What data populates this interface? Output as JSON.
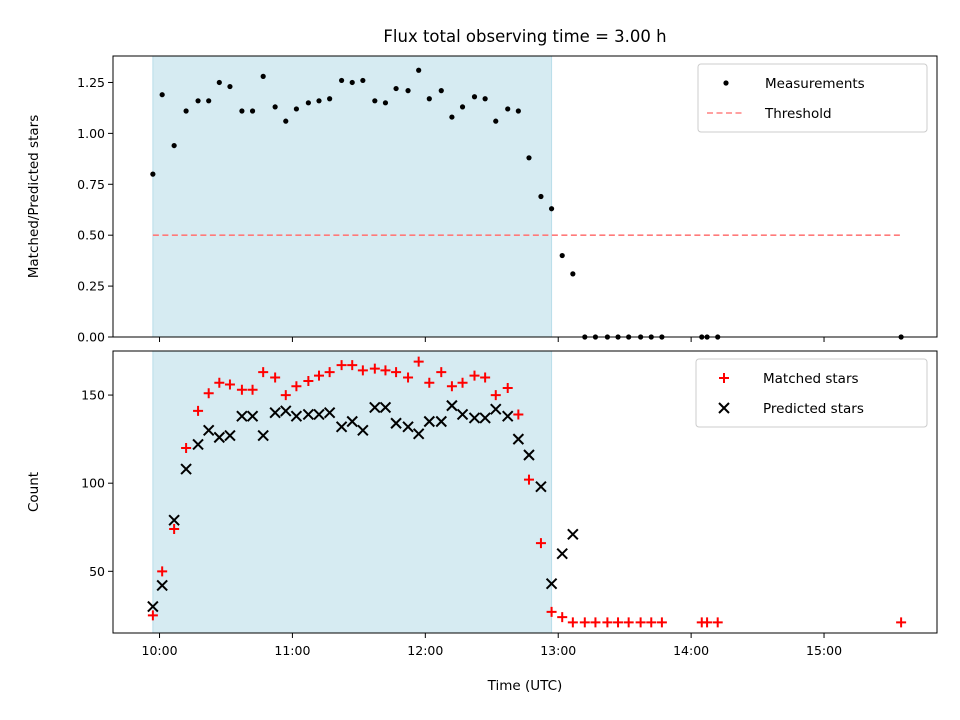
{
  "chart_data": {
    "type": "scatter",
    "title": "Flux total observing time = 3.00 h",
    "xlabel": "Time (UTC)",
    "x_tick_labels": [
      "10:00",
      "11:00",
      "12:00",
      "13:00",
      "14:00",
      "15:00"
    ],
    "x_tick_values": [
      10,
      11,
      12,
      13,
      14,
      15
    ],
    "xlim": [
      9.65,
      15.85
    ],
    "highlight_span": [
      9.95,
      12.95
    ],
    "highlight_color": "#add8e6",
    "panels": [
      {
        "ylabel": "Matched/Predicted stars",
        "ylim": [
          0,
          1.38
        ],
        "y_ticks": [
          0.0,
          0.25,
          0.5,
          0.75,
          1.0,
          1.25
        ],
        "y_tick_labels": [
          "0.00",
          "0.25",
          "0.50",
          "0.75",
          "1.00",
          "1.25"
        ],
        "legend": [
          {
            "label": "Measurements",
            "marker": "dot",
            "color": "#000000"
          },
          {
            "label": "Threshold",
            "marker": "dash",
            "color": "#ff8080"
          }
        ],
        "threshold": {
          "name": "Threshold",
          "value": 0.5,
          "x_range": [
            9.95,
            15.58
          ],
          "color": "#ff7a7a"
        },
        "series": [
          {
            "name": "Measurements",
            "color": "#000000",
            "points": [
              [
                9.95,
                0.8
              ],
              [
                10.02,
                1.19
              ],
              [
                10.11,
                0.94
              ],
              [
                10.2,
                1.11
              ],
              [
                10.29,
                1.16
              ],
              [
                10.37,
                1.16
              ],
              [
                10.45,
                1.25
              ],
              [
                10.53,
                1.23
              ],
              [
                10.62,
                1.11
              ],
              [
                10.7,
                1.11
              ],
              [
                10.78,
                1.28
              ],
              [
                10.87,
                1.13
              ],
              [
                10.95,
                1.06
              ],
              [
                11.03,
                1.12
              ],
              [
                11.12,
                1.15
              ],
              [
                11.2,
                1.16
              ],
              [
                11.28,
                1.17
              ],
              [
                11.37,
                1.26
              ],
              [
                11.45,
                1.25
              ],
              [
                11.53,
                1.26
              ],
              [
                11.62,
                1.16
              ],
              [
                11.7,
                1.15
              ],
              [
                11.78,
                1.22
              ],
              [
                11.87,
                1.21
              ],
              [
                11.95,
                1.31
              ],
              [
                12.03,
                1.17
              ],
              [
                12.12,
                1.21
              ],
              [
                12.2,
                1.08
              ],
              [
                12.28,
                1.13
              ],
              [
                12.37,
                1.18
              ],
              [
                12.45,
                1.17
              ],
              [
                12.53,
                1.06
              ],
              [
                12.62,
                1.12
              ],
              [
                12.7,
                1.11
              ],
              [
                12.78,
                0.88
              ],
              [
                12.87,
                0.69
              ],
              [
                12.95,
                0.63
              ],
              [
                13.03,
                0.4
              ],
              [
                13.11,
                0.31
              ],
              [
                13.2,
                0.0
              ],
              [
                13.28,
                0.0
              ],
              [
                13.37,
                0.0
              ],
              [
                13.45,
                0.0
              ],
              [
                13.53,
                0.0
              ],
              [
                13.62,
                0.0
              ],
              [
                13.7,
                0.0
              ],
              [
                13.78,
                0.0
              ],
              [
                14.08,
                0.0
              ],
              [
                14.12,
                0.0
              ],
              [
                14.2,
                0.0
              ],
              [
                15.58,
                0.0
              ]
            ]
          }
        ]
      },
      {
        "ylabel": "Count",
        "ylim": [
          15,
          175
        ],
        "y_ticks": [
          50,
          100,
          150
        ],
        "y_tick_labels": [
          "50",
          "100",
          "150"
        ],
        "legend": [
          {
            "label": "Matched stars",
            "marker": "plus",
            "color": "#ff0000"
          },
          {
            "label": "Predicted stars",
            "marker": "x",
            "color": "#000000"
          }
        ],
        "series": [
          {
            "name": "Matched stars",
            "marker": "plus",
            "color": "#ff0000",
            "points": [
              [
                9.95,
                25
              ],
              [
                10.02,
                50
              ],
              [
                10.11,
                74
              ],
              [
                10.2,
                120
              ],
              [
                10.29,
                141
              ],
              [
                10.37,
                151
              ],
              [
                10.45,
                157
              ],
              [
                10.53,
                156
              ],
              [
                10.62,
                153
              ],
              [
                10.7,
                153
              ],
              [
                10.78,
                163
              ],
              [
                10.87,
                160
              ],
              [
                10.95,
                150
              ],
              [
                11.03,
                155
              ],
              [
                11.12,
                158
              ],
              [
                11.2,
                161
              ],
              [
                11.28,
                163
              ],
              [
                11.37,
                167
              ],
              [
                11.45,
                167
              ],
              [
                11.53,
                164
              ],
              [
                11.62,
                165
              ],
              [
                11.7,
                164
              ],
              [
                11.78,
                163
              ],
              [
                11.87,
                160
              ],
              [
                11.95,
                169
              ],
              [
                12.03,
                157
              ],
              [
                12.12,
                163
              ],
              [
                12.2,
                155
              ],
              [
                12.28,
                157
              ],
              [
                12.37,
                161
              ],
              [
                12.45,
                160
              ],
              [
                12.53,
                150
              ],
              [
                12.62,
                154
              ],
              [
                12.7,
                139
              ],
              [
                12.78,
                102
              ],
              [
                12.87,
                66
              ],
              [
                12.95,
                27
              ],
              [
                13.03,
                24
              ],
              [
                13.11,
                21
              ],
              [
                13.2,
                21
              ],
              [
                13.28,
                21
              ],
              [
                13.37,
                21
              ],
              [
                13.45,
                21
              ],
              [
                13.53,
                21
              ],
              [
                13.62,
                21
              ],
              [
                13.7,
                21
              ],
              [
                13.78,
                21
              ],
              [
                14.08,
                21
              ],
              [
                14.12,
                21
              ],
              [
                14.2,
                21
              ],
              [
                15.58,
                21
              ]
            ]
          },
          {
            "name": "Predicted stars",
            "marker": "x",
            "color": "#000000",
            "points": [
              [
                9.95,
                30
              ],
              [
                10.02,
                42
              ],
              [
                10.11,
                79
              ],
              [
                10.2,
                108
              ],
              [
                10.29,
                122
              ],
              [
                10.37,
                130
              ],
              [
                10.45,
                126
              ],
              [
                10.53,
                127
              ],
              [
                10.62,
                138
              ],
              [
                10.7,
                138
              ],
              [
                10.78,
                127
              ],
              [
                10.87,
                140
              ],
              [
                10.95,
                141
              ],
              [
                11.03,
                138
              ],
              [
                11.12,
                139
              ],
              [
                11.2,
                139
              ],
              [
                11.28,
                140
              ],
              [
                11.37,
                132
              ],
              [
                11.45,
                135
              ],
              [
                11.53,
                130
              ],
              [
                11.62,
                143
              ],
              [
                11.7,
                143
              ],
              [
                11.78,
                134
              ],
              [
                11.87,
                132
              ],
              [
                11.95,
                128
              ],
              [
                12.03,
                135
              ],
              [
                12.12,
                135
              ],
              [
                12.2,
                144
              ],
              [
                12.28,
                139
              ],
              [
                12.37,
                137
              ],
              [
                12.45,
                137
              ],
              [
                12.53,
                142
              ],
              [
                12.62,
                138
              ],
              [
                12.7,
                125
              ],
              [
                12.78,
                116
              ],
              [
                12.87,
                98
              ],
              [
                12.95,
                43
              ],
              [
                13.03,
                60
              ],
              [
                13.11,
                71
              ]
            ]
          }
        ]
      }
    ]
  }
}
